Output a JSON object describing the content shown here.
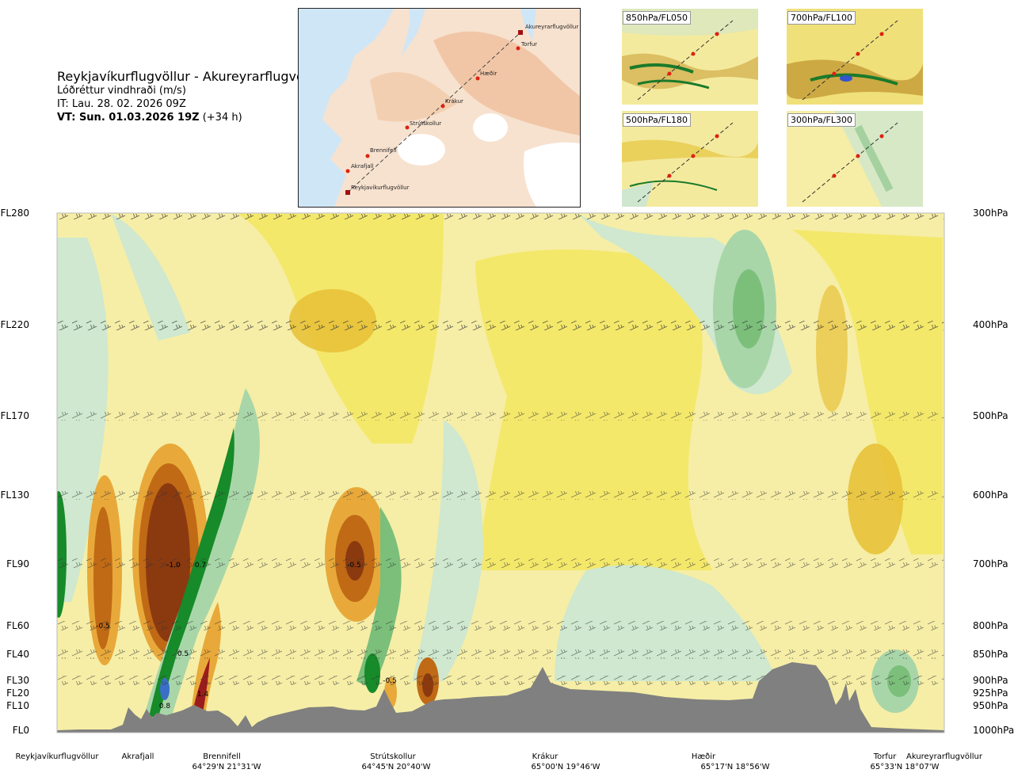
{
  "header": {
    "title": "Reykjavíkurflugvöllur - Akureyrarflugvöllur",
    "subtitle": "Lóðréttur vindhraði (m/s)",
    "init_time": "IT: Lau. 28. 02. 2026 09Z",
    "valid_time": "VT: Sun. 01.03.2026 19Z",
    "lead_time": "(+34 h)"
  },
  "route_map": {
    "waypoints": [
      "Akureyrarflugvöllur",
      "Torfur",
      "Hæðir",
      "Krákur",
      "Strútskollur",
      "Brennifell",
      "Akrafjall",
      "Reykjavíkurflugvöllur"
    ]
  },
  "level_maps": [
    {
      "label": "850hPa/FL050"
    },
    {
      "label": "700hPa/FL100"
    },
    {
      "label": "500hPa/FL180"
    },
    {
      "label": "300hPa/FL300"
    }
  ],
  "chart_data": {
    "type": "heatmap",
    "title": "Lóðréttur vindhraði (m/s)",
    "left_axis_flight_levels": [
      "FL280",
      "FL220",
      "FL170",
      "FL130",
      "FL90",
      "FL60",
      "FL40",
      "FL30",
      "FL20",
      "FL10",
      "FL0"
    ],
    "right_axis_pressure": [
      "300hPa",
      "400hPa",
      "500hPa",
      "600hPa",
      "700hPa",
      "800hPa",
      "850hPa",
      "900hPa",
      "925hPa",
      "950hPa",
      "1000hPa"
    ],
    "contour_labels": [
      {
        "text": "-1.0",
        "x_km": 33,
        "fl": 90
      },
      {
        "text": "0.7",
        "x_km": 39,
        "fl": 90
      },
      {
        "text": "-0.5",
        "x_km": 79,
        "fl": 90
      },
      {
        "text": "-0.5",
        "x_km": 12,
        "fl": 60
      },
      {
        "text": "0.5",
        "x_km": 34,
        "fl": 40
      },
      {
        "text": "-0.5",
        "x_km": 90,
        "fl": 30
      },
      {
        "text": "0.8",
        "x_km": 29,
        "fl": 10
      },
      {
        "text": "1.4",
        "x_km": 37,
        "fl": 20
      }
    ],
    "x_locations": [
      {
        "name": "Reykjavíkurflugvöllur",
        "coord": ""
      },
      {
        "name": "Akrafjall",
        "coord": ""
      },
      {
        "name": "Brennifell",
        "coord": "64°29'N 21°31'W"
      },
      {
        "name": "Strútskollur",
        "coord": "64°45'N 20°40'W"
      },
      {
        "name": "Krákur",
        "coord": "65°00'N 19°46'W"
      },
      {
        "name": "Hæðir",
        "coord": "65°17'N 18°56'W"
      },
      {
        "name": "Torfur",
        "coord": "65°33'N 18°07'W"
      },
      {
        "name": "Akureyrarflugvöllur",
        "coord": ""
      }
    ],
    "legend": "none",
    "grid": false,
    "colors": {
      "strong_negative": "#8b3a10",
      "negative": "#d88a20",
      "weak_negative": "#f3e660",
      "near_zero": "#f6eea6",
      "weak_positive": "#cfe8cf",
      "positive": "#7bbf7b",
      "strong_positive": "#178a2a",
      "extreme_positive": "#9b1c1c",
      "terrain": "#808080"
    }
  }
}
